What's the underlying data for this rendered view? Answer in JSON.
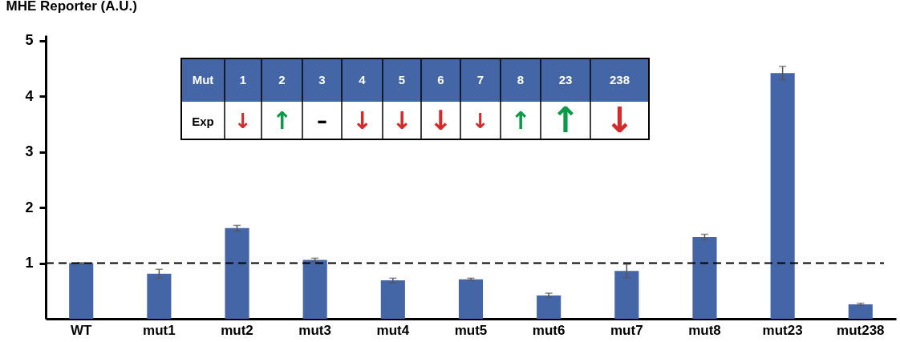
{
  "chart_data": {
    "type": "bar",
    "ylabel": "MHE Reporter (A.U.)",
    "categories": [
      "WT",
      "mut1",
      "mut2",
      "mut3",
      "mut4",
      "mut5",
      "mut6",
      "mut7",
      "mut8",
      "mut23",
      "mut238"
    ],
    "values": [
      1.0,
      0.81,
      1.63,
      1.06,
      0.69,
      0.71,
      0.42,
      0.86,
      1.47,
      4.42,
      0.26
    ],
    "errors": [
      0.01,
      0.08,
      0.05,
      0.03,
      0.04,
      0.02,
      0.04,
      0.12,
      0.05,
      0.12,
      0.02
    ],
    "color": "#4466a6",
    "ylim": [
      0,
      5.1
    ],
    "yticks": [
      1,
      2,
      3,
      4,
      5
    ],
    "grid": false,
    "ref_lines": [
      {
        "axis": "y",
        "value": 1,
        "label": null,
        "color": "#000000",
        "line_style": "dashed"
      }
    ],
    "annotations": [
      "Mut",
      "1",
      "2",
      "3",
      "4",
      "5",
      "6",
      "7",
      "8",
      "23",
      "238",
      "Exp",
      "↓",
      "↑",
      "–",
      "↓",
      "↓",
      "↓",
      "↓",
      "↑",
      "↑",
      "↓"
    ]
  }
}
